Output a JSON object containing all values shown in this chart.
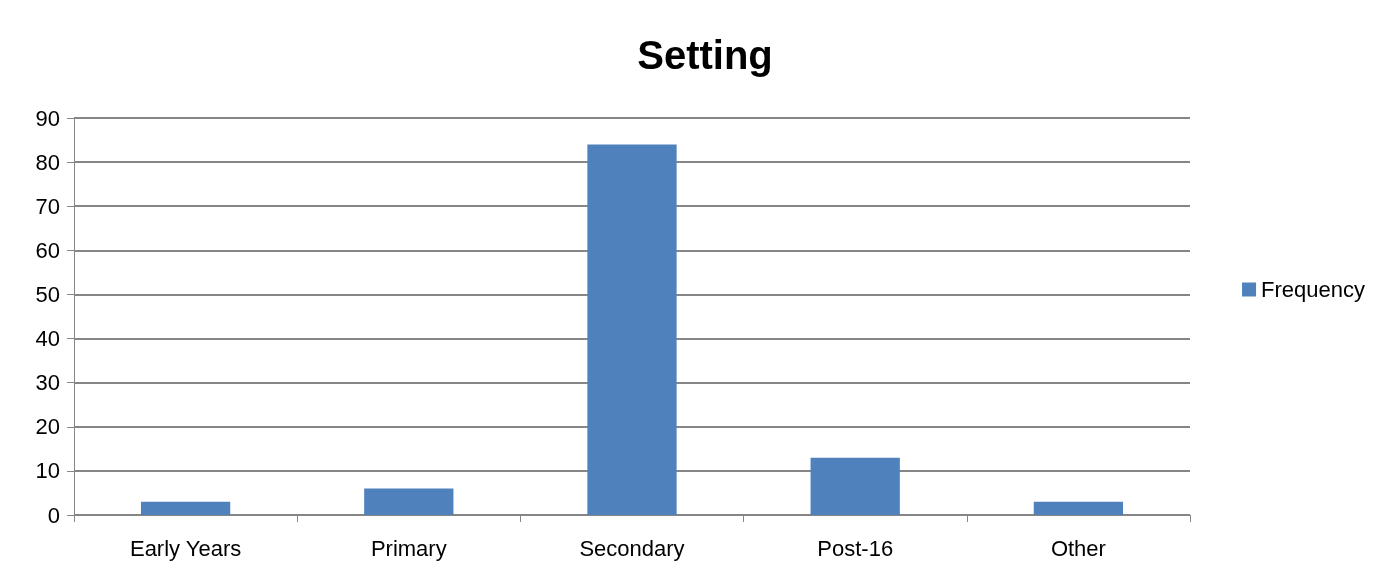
{
  "chart_data": {
    "type": "bar",
    "title": "Setting",
    "categories": [
      "Early Years",
      "Primary",
      "Secondary",
      "Post-16",
      "Other"
    ],
    "series": [
      {
        "name": "Frequency",
        "color": "#4f81bd",
        "values": [
          3,
          6,
          84,
          13,
          3
        ]
      }
    ],
    "ylim": [
      0,
      90
    ],
    "yticks": [
      0,
      10,
      20,
      30,
      40,
      50,
      60,
      70,
      80,
      90
    ],
    "grid": "y",
    "legend": "right"
  }
}
